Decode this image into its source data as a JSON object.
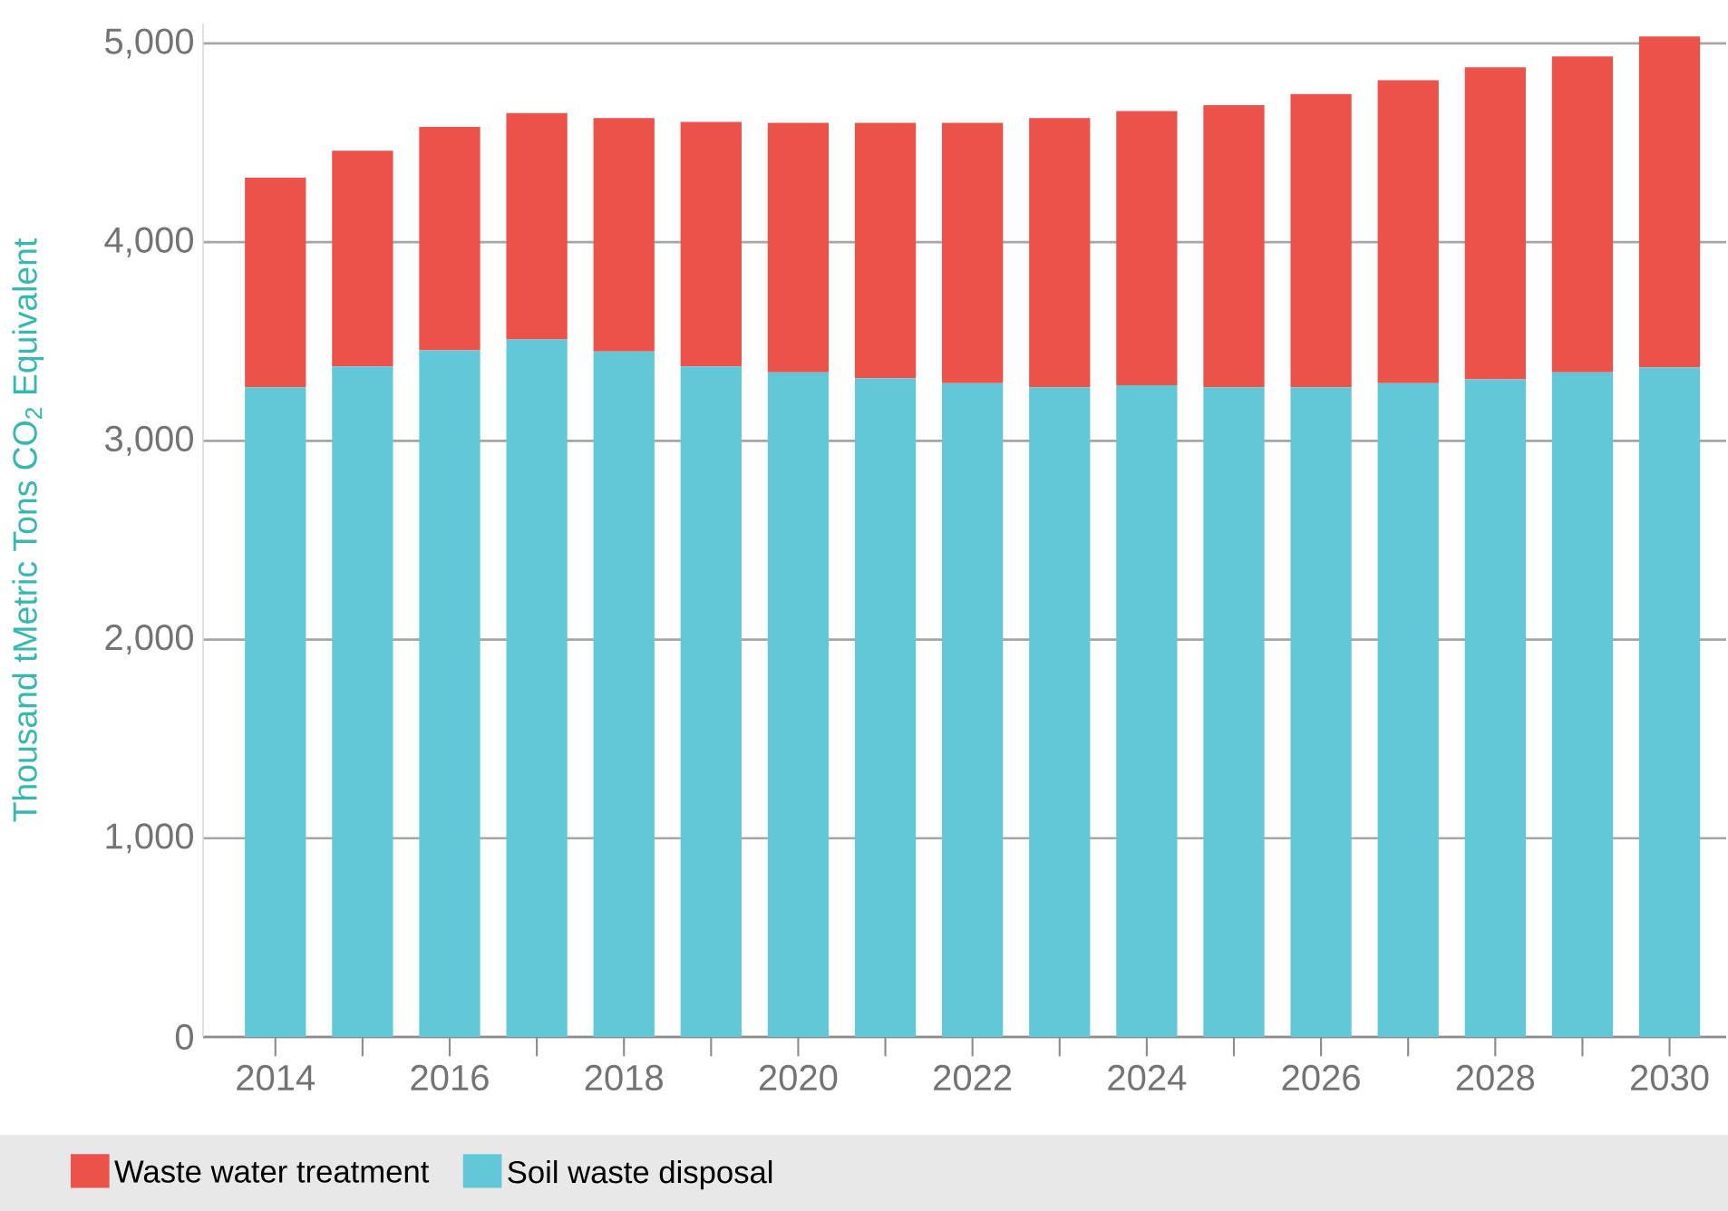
{
  "chart_data": {
    "type": "bar",
    "stacked": true,
    "ylabel": "Thousand tMetric Tons CO$_{2}$ Equivalent",
    "categories": [
      "2014",
      null,
      "2016",
      null,
      "2018",
      null,
      "2020",
      null,
      "2022",
      null,
      "2024",
      null,
      "2026",
      null,
      "2028",
      null,
      "2030"
    ],
    "series": [
      {
        "name": "Soil waste disposal",
        "color": "#62c8d7",
        "values": [
          3270,
          3375,
          3455,
          3510,
          3450,
          3375,
          3345,
          3315,
          3290,
          3270,
          3280,
          3270,
          3270,
          3290,
          3310,
          3345,
          3370
        ]
      },
      {
        "name": "Waste water treatment",
        "color": "#eb524a",
        "values": [
          1055,
          1085,
          1125,
          1140,
          1175,
          1230,
          1255,
          1285,
          1310,
          1355,
          1380,
          1420,
          1475,
          1525,
          1570,
          1590,
          1665
        ]
      }
    ],
    "ylim": [
      0,
      5100
    ],
    "yticks": [
      0,
      {
        "value": 1000,
        "label": "1,000"
      },
      {
        "value": 2000,
        "label": "2,000"
      },
      {
        "value": 3000,
        "label": "3,000"
      },
      {
        "value": 4000,
        "label": "4,000"
      },
      {
        "value": 5000,
        "label": "5,000"
      }
    ],
    "grid": "y",
    "legend": "bottom"
  }
}
